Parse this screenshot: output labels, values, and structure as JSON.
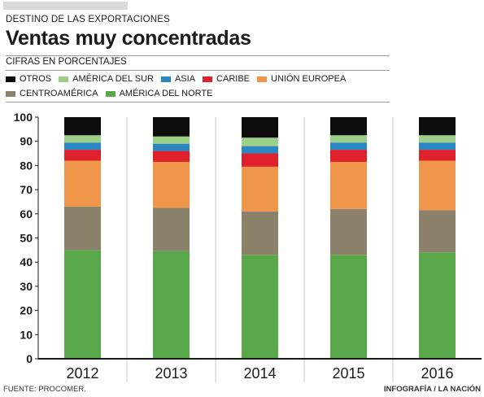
{
  "header": {
    "kicker": "DESTINO DE LAS EXPORTACIONES",
    "title": "Ventas muy concentradas",
    "subtitle": "CIFRAS EN PORCENTAJES"
  },
  "footer": {
    "source": "FUENTE: PROCOMER.",
    "credit": "INFOGRAFÍA  / LA NACIÓN"
  },
  "chart_data": {
    "type": "bar",
    "stacked": true,
    "categories": [
      "2012",
      "2013",
      "2014",
      "2015",
      "2016"
    ],
    "ylim": [
      0,
      100
    ],
    "yticks": [
      0,
      10,
      20,
      30,
      40,
      50,
      60,
      70,
      80,
      90,
      100
    ],
    "grid": false,
    "legend_position": "top-left",
    "series": [
      {
        "name": "AMÉRICA DEL NORTE",
        "color": "#58a84a",
        "values": [
          45,
          44.5,
          43,
          43,
          44
        ]
      },
      {
        "name": "CENTROAMÉRICA",
        "color": "#8c826c",
        "values": [
          18,
          18,
          18,
          19,
          17.5
        ]
      },
      {
        "name": "UNIÓN EUROPEA",
        "color": "#f0964a",
        "values": [
          19,
          19,
          18.5,
          19.5,
          20.5
        ]
      },
      {
        "name": "CARIBE",
        "color": "#e0202a",
        "values": [
          4.5,
          4.5,
          5.5,
          5,
          4.5
        ]
      },
      {
        "name": "ASIA",
        "color": "#2b86c4",
        "values": [
          3,
          3,
          3,
          3,
          3
        ]
      },
      {
        "name": "AMÉRICA DEL SUR",
        "color": "#9ccf88",
        "values": [
          3,
          3,
          3.5,
          3,
          3
        ]
      },
      {
        "name": "OTROS",
        "color": "#0d0d0d",
        "values": [
          7.5,
          8,
          8.5,
          7.5,
          7.5
        ]
      }
    ],
    "legend_rows": [
      [
        "OTROS",
        "AMÉRICA DEL SUR",
        "ASIA",
        "CARIBE",
        "UNIÓN EUROPEA"
      ],
      [
        "CENTROAMÉRICA",
        "AMÉRICA DEL NORTE"
      ]
    ]
  }
}
